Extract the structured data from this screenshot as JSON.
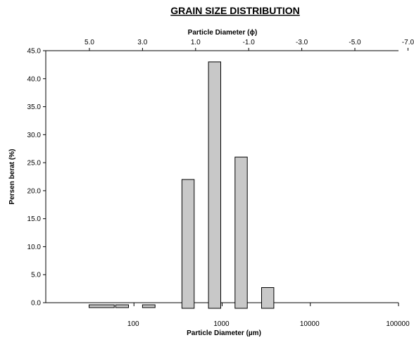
{
  "chart_data": {
    "type": "bar",
    "title": "GRAIN SIZE DISTRIBUTION",
    "xlabel": "Particle Diameter (µm)",
    "x2label": "Particle Diameter (ϕ)",
    "ylabel": "Persen berat  (%)",
    "x_scale": "log",
    "xlim": [
      10,
      100000
    ],
    "ylim": [
      0,
      45
    ],
    "y_ticks": [
      "0.0",
      "5.0",
      "10.0",
      "15.0",
      "20.0",
      "25.0",
      "30.0",
      "35.0",
      "40.0",
      "45.0"
    ],
    "x_tick_labels": [
      "100",
      "1000",
      "10000",
      "100000"
    ],
    "x_tick_values": [
      100,
      1000,
      10000,
      100000
    ],
    "x2_tick_labels": [
      "5.0",
      "3.0",
      "1.0",
      "-1.0",
      "-3.0",
      "-5.0",
      "-7.0"
    ],
    "x2_tick_values": [
      5,
      3,
      1,
      -1,
      -3,
      -5,
      -7
    ],
    "bars": [
      {
        "x_min": 31,
        "x_max": 62,
        "value": -0.8
      },
      {
        "x_min": 62,
        "x_max": 90,
        "value": -0.8
      },
      {
        "x_min": 125,
        "x_max": 180,
        "value": -0.3
      },
      {
        "x_min": 350,
        "x_max": 500,
        "value": 22
      },
      {
        "x_min": 700,
        "x_max": 1000,
        "value": 43
      },
      {
        "x_min": 1400,
        "x_max": 2000,
        "value": 26
      },
      {
        "x_min": 2800,
        "x_max": 4000,
        "value": 2.7
      }
    ],
    "grid": false,
    "legend": "none"
  },
  "colors": {
    "bar_fill": "#c8c8c8",
    "axis": "#000000"
  }
}
